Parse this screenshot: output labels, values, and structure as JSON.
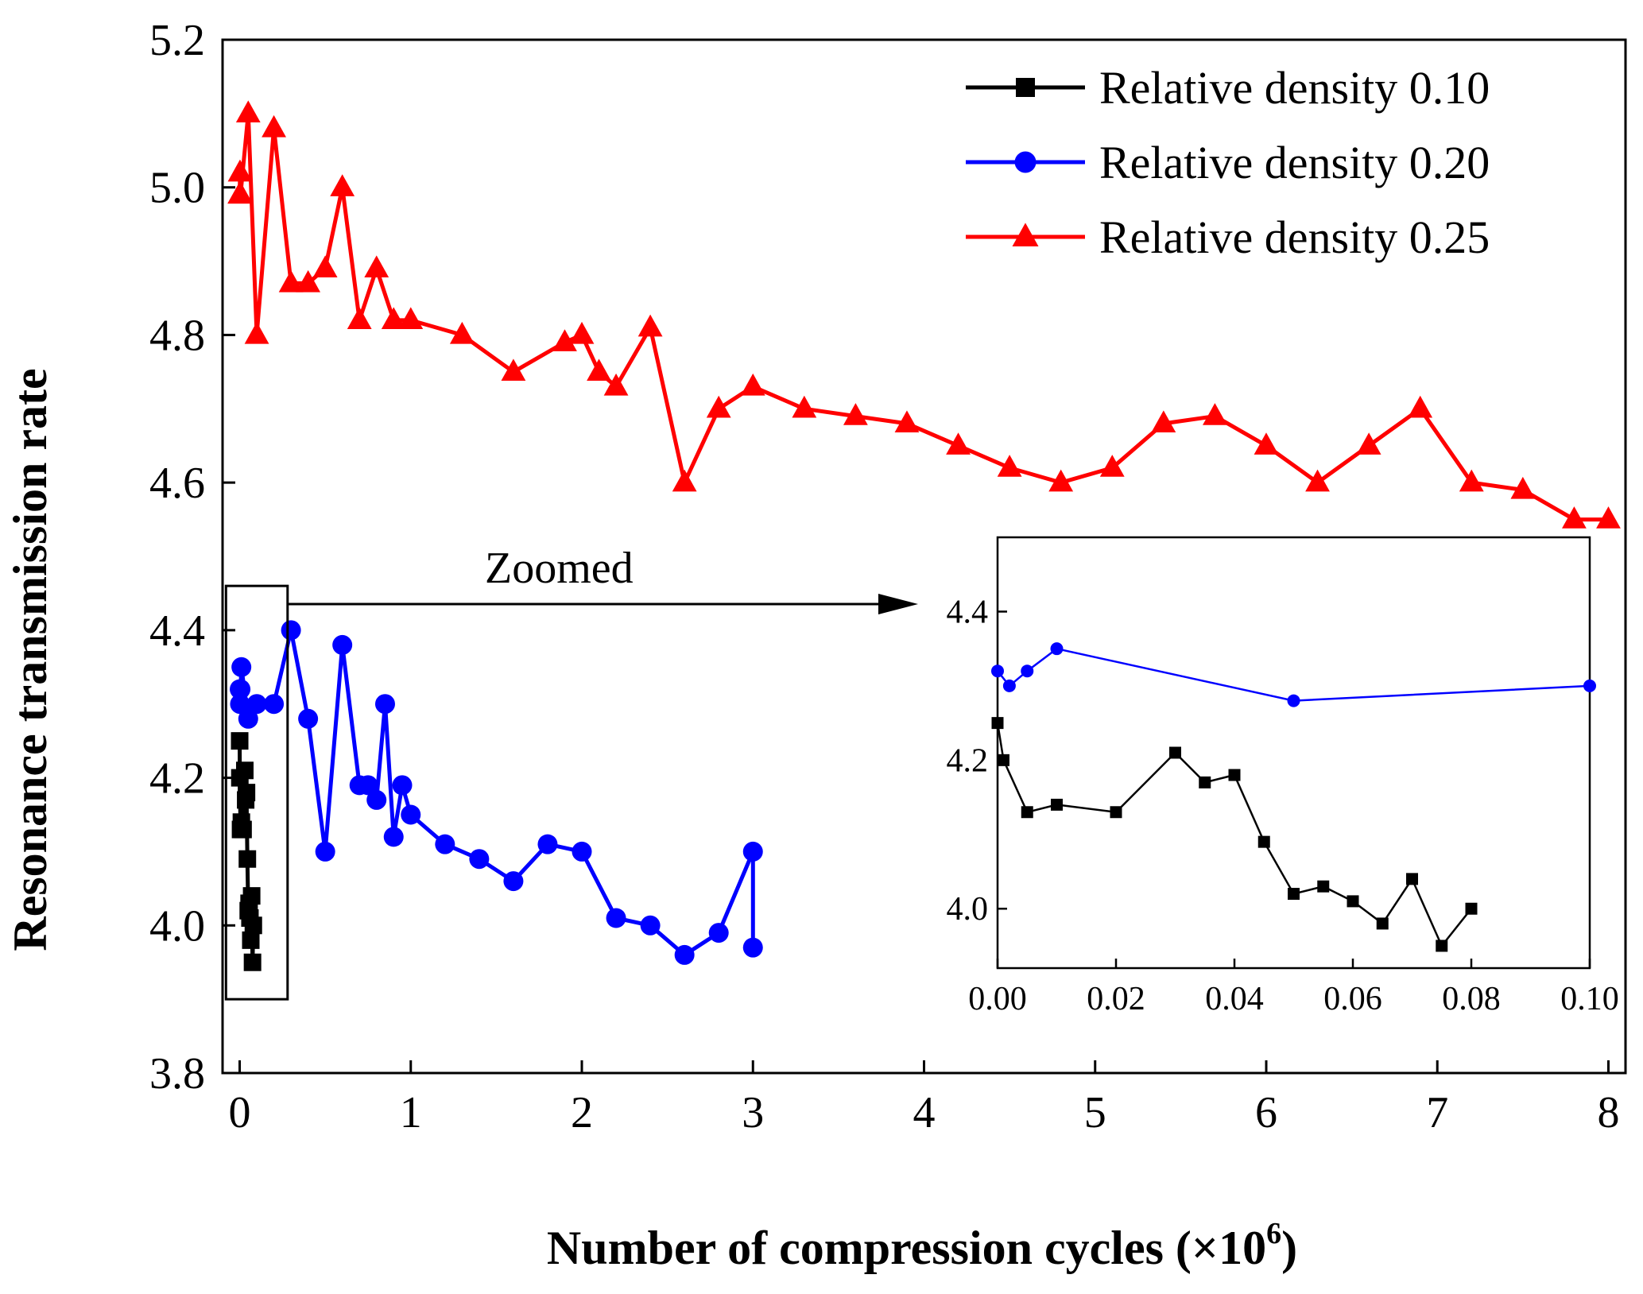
{
  "chart_data": [
    {
      "id": "main",
      "type": "line",
      "xlabel": "Number of compression cycles (×10",
      "xlabel_sup": "6",
      "xlabel_end": ")",
      "ylabel": "Resonance transmission rate",
      "xlim": [
        -0.1,
        8.1
      ],
      "ylim": [
        3.8,
        5.2
      ],
      "xticks": [
        0,
        1,
        2,
        3,
        4,
        5,
        6,
        7,
        8
      ],
      "xtick_labels": [
        "0",
        "1",
        "2",
        "3",
        "4",
        "5",
        "6",
        "7",
        "8"
      ],
      "yticks": [
        3.8,
        4.0,
        4.2,
        4.4,
        4.6,
        4.8,
        5.0,
        5.2
      ],
      "ytick_labels": [
        "3.8",
        "4.0",
        "4.2",
        "4.4",
        "4.6",
        "4.8",
        "5.0",
        "5.2"
      ],
      "legend_position": "top-right",
      "series": [
        {
          "name": "Relative density 0.10",
          "color": "#000000",
          "marker": "square",
          "x": [
            0,
            0.001,
            0.005,
            0.01,
            0.02,
            0.03,
            0.035,
            0.04,
            0.045,
            0.05,
            0.055,
            0.06,
            0.065,
            0.07,
            0.075,
            0.08
          ],
          "y": [
            4.25,
            4.2,
            4.13,
            4.14,
            4.13,
            4.21,
            4.17,
            4.18,
            4.09,
            4.02,
            4.03,
            4.01,
            3.98,
            4.04,
            3.95,
            4.0
          ]
        },
        {
          "name": "Relative density 0.20",
          "color": "#0000ff",
          "marker": "circle",
          "x": [
            0,
            0.002,
            0.005,
            0.01,
            0.05,
            0.1,
            0.2,
            0.3,
            0.4,
            0.5,
            0.6,
            0.7,
            0.75,
            0.8,
            0.85,
            0.9,
            0.95,
            1.0,
            1.2,
            1.4,
            1.6,
            1.8,
            2.0,
            2.2,
            2.4,
            2.6,
            2.8,
            3.0,
            3.0
          ],
          "y": [
            4.32,
            4.3,
            4.32,
            4.35,
            4.28,
            4.3,
            4.3,
            4.4,
            4.28,
            4.1,
            4.38,
            4.19,
            4.19,
            4.17,
            4.3,
            4.12,
            4.19,
            4.15,
            4.11,
            4.09,
            4.06,
            4.11,
            4.1,
            4.01,
            4.0,
            3.96,
            3.99,
            4.1,
            3.97
          ]
        },
        {
          "name": "Relative density 0.25",
          "color": "#ff0000",
          "marker": "triangle",
          "x": [
            0,
            0.002,
            0.005,
            0.05,
            0.1,
            0.2,
            0.3,
            0.4,
            0.5,
            0.6,
            0.7,
            0.8,
            0.9,
            1.0,
            1.3,
            1.6,
            1.9,
            2.0,
            2.1,
            2.2,
            2.4,
            2.6,
            2.8,
            3.0,
            3.3,
            3.6,
            3.9,
            4.2,
            4.5,
            4.8,
            5.1,
            5.4,
            5.7,
            6.0,
            6.3,
            6.6,
            6.9,
            7.2,
            7.5,
            7.8,
            8.0
          ],
          "y": [
            4.99,
            5.02,
            4.99,
            5.1,
            4.8,
            5.08,
            4.87,
            4.87,
            4.89,
            5.0,
            4.82,
            4.89,
            4.82,
            4.82,
            4.8,
            4.75,
            4.79,
            4.8,
            4.75,
            4.73,
            4.81,
            4.6,
            4.7,
            4.73,
            4.7,
            4.69,
            4.68,
            4.65,
            4.62,
            4.6,
            4.62,
            4.68,
            4.69,
            4.65,
            4.6,
            4.65,
            4.7,
            4.6,
            4.59,
            4.55,
            4.55
          ]
        }
      ],
      "annotation": "Zoomed",
      "zoom_box": {
        "x": [
          -0.08,
          0.28
        ],
        "y": [
          3.9,
          4.46
        ]
      }
    },
    {
      "id": "inset",
      "type": "line",
      "xlim": [
        0.0,
        0.1
      ],
      "ylim": [
        3.92,
        4.5
      ],
      "xticks": [
        0.0,
        0.02,
        0.04,
        0.06,
        0.08,
        0.1
      ],
      "xtick_labels": [
        "0.00",
        "0.02",
        "0.04",
        "0.06",
        "0.08",
        "0.10"
      ],
      "yticks": [
        4.0,
        4.2,
        4.4
      ],
      "ytick_labels": [
        "4.0",
        "4.2",
        "4.4"
      ],
      "series": [
        {
          "name": "Relative density 0.10",
          "color": "#000000",
          "marker": "square",
          "x": [
            0,
            0.001,
            0.005,
            0.01,
            0.02,
            0.03,
            0.035,
            0.04,
            0.045,
            0.05,
            0.055,
            0.06,
            0.065,
            0.07,
            0.075,
            0.08
          ],
          "y": [
            4.25,
            4.2,
            4.13,
            4.14,
            4.13,
            4.21,
            4.17,
            4.18,
            4.09,
            4.02,
            4.03,
            4.01,
            3.98,
            4.04,
            3.95,
            4.0
          ]
        },
        {
          "name": "Relative density 0.20",
          "color": "#0000ff",
          "marker": "circle",
          "x": [
            0,
            0.002,
            0.005,
            0.01,
            0.05,
            0.1
          ],
          "y": [
            4.32,
            4.3,
            4.32,
            4.35,
            4.28,
            4.3
          ]
        }
      ]
    }
  ]
}
